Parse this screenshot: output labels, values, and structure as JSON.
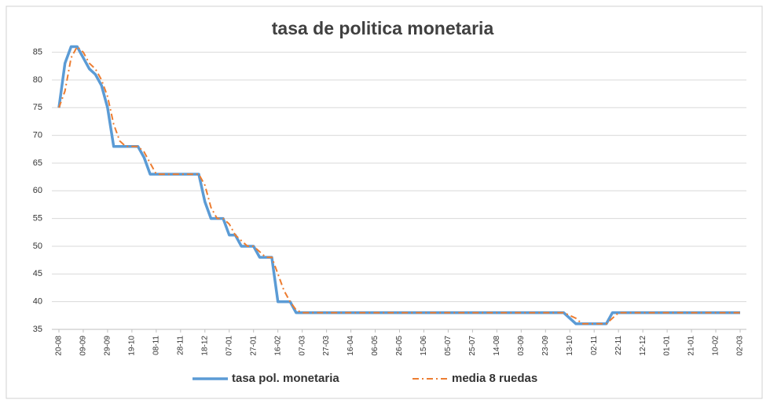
{
  "chart_data": {
    "type": "line",
    "title": "tasa de politica monetaria",
    "categories": [
      "20-08",
      null,
      null,
      null,
      "09-09",
      null,
      null,
      null,
      "29-09",
      null,
      null,
      null,
      "19-10",
      null,
      null,
      null,
      "08-11",
      null,
      null,
      null,
      "28-11",
      null,
      null,
      null,
      "18-12",
      null,
      null,
      null,
      "07-01",
      null,
      null,
      null,
      "27-01",
      null,
      null,
      null,
      "16-02",
      null,
      null,
      null,
      "07-03",
      null,
      null,
      null,
      "27-03",
      null,
      null,
      null,
      "16-04",
      null,
      null,
      null,
      "06-05",
      null,
      null,
      null,
      "26-05",
      null,
      null,
      null,
      "15-06",
      null,
      null,
      null,
      "05-07",
      null,
      null,
      null,
      "25-07",
      null,
      null,
      null,
      "14-08",
      null,
      null,
      null,
      "03-09",
      null,
      null,
      null,
      "23-09",
      null,
      null,
      null,
      "13-10",
      null,
      null,
      null,
      "02-11",
      null,
      null,
      null,
      "22-11",
      null,
      null,
      null,
      "12-12",
      null,
      null,
      null,
      "01-01",
      null,
      null,
      null,
      "21-01",
      null,
      null,
      null,
      "10-02",
      null,
      null,
      null,
      "02-03"
    ],
    "series": [
      {
        "name": "tasa pol. monetaria",
        "color": "#5b9bd5",
        "style": "solid",
        "values": [
          75,
          83,
          86,
          86,
          84,
          82,
          81,
          79,
          75,
          68,
          68,
          68,
          68,
          68,
          66,
          63,
          63,
          63,
          63,
          63,
          63,
          63,
          63,
          63,
          58,
          55,
          55,
          55,
          52,
          52,
          50,
          50,
          50,
          48,
          48,
          48,
          40,
          40,
          40,
          38,
          38,
          38,
          38,
          38,
          38,
          38,
          38,
          38,
          38,
          38,
          38,
          38,
          38,
          38,
          38,
          38,
          38,
          38,
          38,
          38,
          38,
          38,
          38,
          38,
          38,
          38,
          38,
          38,
          38,
          38,
          38,
          38,
          38,
          38,
          38,
          38,
          38,
          38,
          38,
          38,
          38,
          38,
          38,
          38,
          37,
          36,
          36,
          36,
          36,
          36,
          36,
          38,
          38,
          38,
          38,
          38,
          38,
          38,
          38,
          38,
          38,
          38,
          38,
          38,
          38,
          38,
          38,
          38,
          38,
          38,
          38,
          38,
          38
        ]
      },
      {
        "name": "media 8 ruedas",
        "color": "#ed7d31",
        "style": "dashdot",
        "values": [
          75,
          78,
          84,
          86,
          85,
          83,
          82,
          80,
          77,
          72,
          69,
          68,
          68,
          68,
          67,
          65,
          63,
          63,
          63,
          63,
          63,
          63,
          63,
          63,
          61,
          57,
          55,
          55,
          54,
          52,
          51,
          50,
          50,
          49,
          48,
          48,
          45,
          42,
          40,
          38.5,
          38,
          38,
          38,
          38,
          38,
          38,
          38,
          38,
          38,
          38,
          38,
          38,
          38,
          38,
          38,
          38,
          38,
          38,
          38,
          38,
          38,
          38,
          38,
          38,
          38,
          38,
          38,
          38,
          38,
          38,
          38,
          38,
          38,
          38,
          38,
          38,
          38,
          38,
          38,
          38,
          38,
          38,
          38,
          38,
          37.5,
          37,
          36,
          36,
          36,
          36,
          36,
          37,
          38,
          38,
          38,
          38,
          38,
          38,
          38,
          38,
          38,
          38,
          38,
          38,
          38,
          38,
          38,
          38,
          38,
          38,
          38,
          38,
          38
        ]
      }
    ],
    "ylim": [
      35,
      86.5
    ],
    "yticks": [
      35,
      40,
      45,
      50,
      55,
      60,
      65,
      70,
      75,
      80,
      85
    ],
    "grid": true,
    "legend": "bottom"
  }
}
